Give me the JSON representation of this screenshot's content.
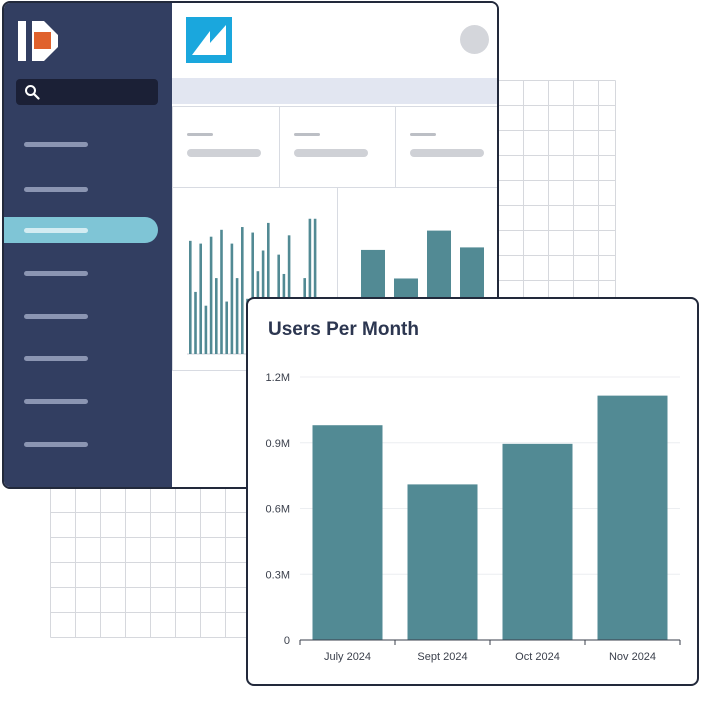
{
  "app": {
    "search": {
      "placeholder": ""
    },
    "sidebar": {
      "items": [
        {
          "id": "nav-1",
          "active": false
        },
        {
          "id": "nav-2",
          "active": false
        },
        {
          "id": "nav-3",
          "active": true
        },
        {
          "id": "nav-4",
          "active": false
        },
        {
          "id": "nav-5",
          "active": false
        },
        {
          "id": "nav-6",
          "active": false
        },
        {
          "id": "nav-7",
          "active": false
        },
        {
          "id": "nav-8",
          "active": false
        }
      ]
    },
    "colors": {
      "sidebar": "#323e61",
      "accent": "#7fc5d6",
      "brand_orange": "#e0612c",
      "brand_blue": "#1aa7dd",
      "bar": "#528a94"
    },
    "mini_charts": {
      "spark_bars": [
        0.82,
        0.45,
        0.8,
        0.35,
        0.85,
        0.55,
        0.9,
        0.38,
        0.8,
        0.55,
        0.92,
        0.4,
        0.88,
        0.6,
        0.75,
        0.95,
        0.3,
        0.72,
        0.58,
        0.86,
        0.1,
        0.1,
        0.55,
        0.98,
        0.98
      ],
      "column_bars": [
        0.62,
        0.28,
        0.85,
        0.65
      ]
    }
  },
  "chart_data": {
    "type": "bar",
    "title": "Users Per Month",
    "categories": [
      "July 2024",
      "Sept 2024",
      "Oct 2024",
      "Nov 2024"
    ],
    "values": [
      980000,
      710000,
      895000,
      1115000
    ],
    "ylim": [
      0,
      1200000
    ],
    "yticks": [
      0,
      300000,
      600000,
      900000,
      1200000
    ],
    "ytick_labels": [
      "0",
      "0.3M",
      "0.6M",
      "0.9M",
      "1.2M"
    ],
    "grid": true,
    "xlabel": "",
    "ylabel": ""
  }
}
